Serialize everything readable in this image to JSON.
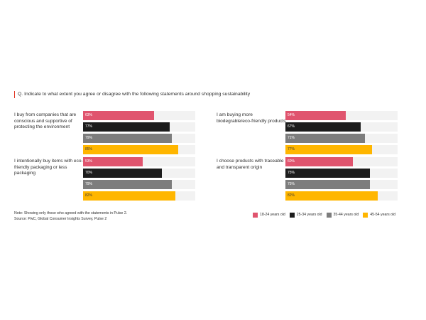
{
  "question": "Q. Indicate to what extent you agree or disagree with the following statements around shopping sustainability",
  "note_lines": [
    "Note: Showing only those who agreed with the statements in Pulse 2.",
    "Source: PwC, Global Consumer Insights Survey, Pulse 2"
  ],
  "colors": {
    "accent": "#e0301e",
    "track": "#f2f2f2",
    "series": [
      "#e0546e",
      "#1c1c1c",
      "#7d7d7d",
      "#ffb600"
    ]
  },
  "chart_data": {
    "type": "bar",
    "orientation": "horizontal",
    "value_max": 100,
    "value_suffix": "%",
    "series": [
      {
        "name": "18-24 years old"
      },
      {
        "name": "25-34 years old"
      },
      {
        "name": "35-44 years old"
      },
      {
        "name": "45-54 years old"
      }
    ],
    "panels": [
      {
        "label": "I buy from companies that are conscious and supportive of protecting the environment",
        "values": [
          63,
          77,
          79,
          85
        ]
      },
      {
        "label": "I am buying more biodegrable/eco-friendly products",
        "values": [
          54,
          67,
          71,
          77
        ]
      },
      {
        "label": "I intentionally buy items with eco-friendly packaging or less packaging",
        "values": [
          53,
          70,
          79,
          82
        ]
      },
      {
        "label": "I choose products with traceable and transparent origin",
        "values": [
          60,
          75,
          75,
          82
        ]
      }
    ],
    "legend_position": "bottom-right"
  }
}
